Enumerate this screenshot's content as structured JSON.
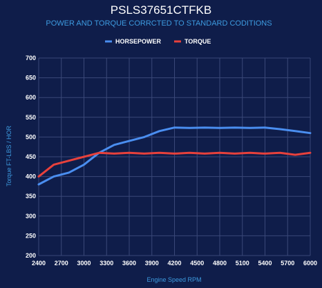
{
  "chart_data": {
    "type": "line",
    "title": "PSLS37651CTFKB",
    "subtitle": "POWER AND TORQUE CORRCTED TO STANDARD CODITIONS",
    "xlabel": "Engine Speed RPM",
    "ylabel": "Torque FT-LBS / HOR",
    "xlim": [
      2400,
      6000
    ],
    "ylim": [
      200,
      700
    ],
    "x_ticks": [
      2400,
      2700,
      3000,
      3300,
      3600,
      3900,
      4200,
      4500,
      4800,
      5100,
      5400,
      5700,
      6000
    ],
    "y_ticks": [
      200,
      250,
      300,
      350,
      400,
      450,
      500,
      550,
      600,
      650,
      700
    ],
    "grid": true,
    "legend_position": "top-center",
    "series": [
      {
        "name": "HORSEPOWER",
        "color": "#4a8ef0",
        "x": [
          2400,
          2600,
          2800,
          3000,
          3200,
          3400,
          3600,
          3800,
          4000,
          4200,
          4400,
          4600,
          4800,
          5000,
          5200,
          5400,
          5600,
          5800,
          6000
        ],
        "y": [
          380,
          400,
          410,
          430,
          460,
          480,
          490,
          500,
          515,
          524,
          523,
          524,
          523,
          524,
          523,
          524,
          520,
          515,
          510
        ]
      },
      {
        "name": "TORQUE",
        "color": "#e8413c",
        "x": [
          2400,
          2600,
          2800,
          3000,
          3200,
          3400,
          3600,
          3800,
          4000,
          4200,
          4400,
          4600,
          4800,
          5000,
          5200,
          5400,
          5600,
          5800,
          6000
        ],
        "y": [
          400,
          430,
          440,
          450,
          460,
          458,
          460,
          458,
          460,
          458,
          460,
          458,
          460,
          458,
          460,
          458,
          460,
          455,
          460
        ]
      }
    ]
  }
}
